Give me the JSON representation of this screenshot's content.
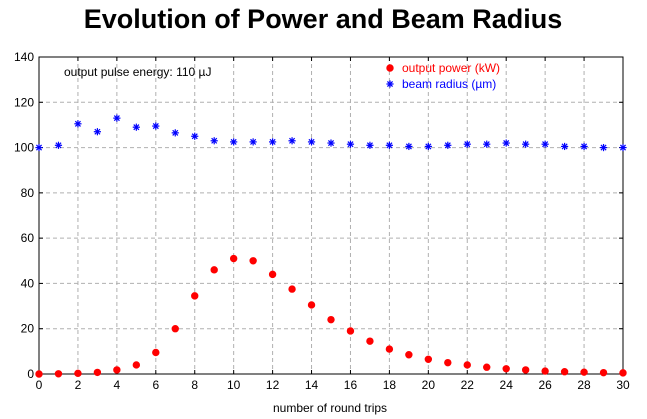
{
  "chart_data": {
    "type": "scatter",
    "title": "Evolution of Power and Beam Radius",
    "xlabel": "number of round trips",
    "ylabel": "",
    "xlim": [
      0,
      30
    ],
    "ylim": [
      0,
      140
    ],
    "xticks": [
      0,
      2,
      4,
      6,
      8,
      10,
      12,
      14,
      16,
      18,
      20,
      22,
      24,
      26,
      28,
      30
    ],
    "yticks": [
      0,
      20,
      40,
      60,
      80,
      100,
      120,
      140
    ],
    "grid": true,
    "legend_position": "top-right",
    "annotation": "output pulse energy: 110 µJ",
    "series": [
      {
        "name": "output power (kW)",
        "marker": "circle",
        "color": "#ff0000",
        "x": [
          0,
          1,
          2,
          3,
          4,
          5,
          6,
          7,
          8,
          9,
          10,
          11,
          12,
          13,
          14,
          15,
          16,
          17,
          18,
          19,
          20,
          21,
          22,
          23,
          24,
          25,
          26,
          27,
          28,
          29,
          30
        ],
        "y": [
          0,
          0.1,
          0.3,
          0.7,
          1.8,
          4,
          9.5,
          20,
          34.5,
          46,
          51,
          50,
          44,
          37.5,
          30.5,
          24,
          19,
          14.5,
          11,
          8.5,
          6.5,
          5,
          4,
          3,
          2.3,
          1.8,
          1.3,
          1,
          0.8,
          0.6,
          0.5
        ]
      },
      {
        "name": "beam radius (µm)",
        "marker": "star",
        "color": "#0000ff",
        "x": [
          0,
          1,
          2,
          3,
          4,
          5,
          6,
          7,
          8,
          9,
          10,
          11,
          12,
          13,
          14,
          15,
          16,
          17,
          18,
          19,
          20,
          21,
          22,
          23,
          24,
          25,
          26,
          27,
          28,
          29,
          30
        ],
        "y": [
          100,
          101,
          110.5,
          107,
          113,
          109,
          109.5,
          106.5,
          105,
          103,
          102.5,
          102.5,
          102.5,
          103,
          102.5,
          102,
          101.5,
          101,
          101,
          100.5,
          100.5,
          101,
          101.5,
          101.5,
          102,
          101.5,
          101.5,
          100.5,
          100.5,
          100,
          100
        ]
      }
    ]
  }
}
